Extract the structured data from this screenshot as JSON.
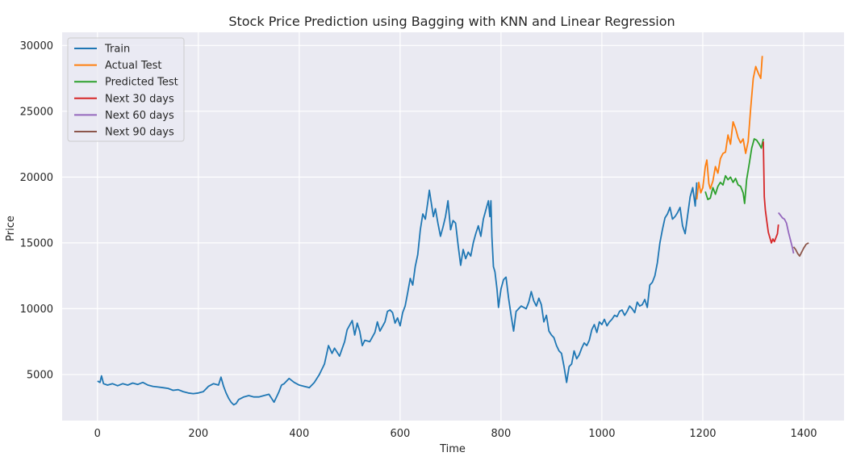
{
  "chart_data": {
    "type": "line",
    "title": "Stock Price Prediction using Bagging with KNN and Linear Regression",
    "xlabel": "Time",
    "ylabel": "Price",
    "xlim": [
      -70,
      1480
    ],
    "ylim": [
      1500,
      31000
    ],
    "xticks": [
      0,
      200,
      400,
      600,
      800,
      1000,
      1200,
      1400
    ],
    "yticks": [
      5000,
      10000,
      15000,
      20000,
      25000,
      30000
    ],
    "grid": true,
    "legend_position": "top-left",
    "series": [
      {
        "name": "Train",
        "color": "#1f77b4",
        "points": [
          [
            0,
            4500
          ],
          [
            5,
            4400
          ],
          [
            8,
            4900
          ],
          [
            12,
            4300
          ],
          [
            20,
            4200
          ],
          [
            30,
            4300
          ],
          [
            40,
            4150
          ],
          [
            50,
            4300
          ],
          [
            60,
            4200
          ],
          [
            70,
            4350
          ],
          [
            80,
            4250
          ],
          [
            90,
            4400
          ],
          [
            100,
            4200
          ],
          [
            110,
            4100
          ],
          [
            120,
            4050
          ],
          [
            130,
            4000
          ],
          [
            140,
            3950
          ],
          [
            150,
            3800
          ],
          [
            160,
            3850
          ],
          [
            170,
            3700
          ],
          [
            180,
            3600
          ],
          [
            190,
            3550
          ],
          [
            200,
            3600
          ],
          [
            210,
            3700
          ],
          [
            220,
            4100
          ],
          [
            230,
            4300
          ],
          [
            240,
            4200
          ],
          [
            245,
            4800
          ],
          [
            250,
            4100
          ],
          [
            255,
            3600
          ],
          [
            260,
            3200
          ],
          [
            265,
            2900
          ],
          [
            270,
            2700
          ],
          [
            275,
            2800
          ],
          [
            280,
            3100
          ],
          [
            290,
            3300
          ],
          [
            300,
            3400
          ],
          [
            310,
            3300
          ],
          [
            320,
            3300
          ],
          [
            330,
            3400
          ],
          [
            340,
            3500
          ],
          [
            350,
            2900
          ],
          [
            355,
            3300
          ],
          [
            360,
            3700
          ],
          [
            365,
            4200
          ],
          [
            370,
            4300
          ],
          [
            380,
            4700
          ],
          [
            390,
            4400
          ],
          [
            400,
            4200
          ],
          [
            410,
            4100
          ],
          [
            420,
            4000
          ],
          [
            430,
            4400
          ],
          [
            440,
            5000
          ],
          [
            450,
            5800
          ],
          [
            458,
            7200
          ],
          [
            465,
            6600
          ],
          [
            470,
            7000
          ],
          [
            480,
            6400
          ],
          [
            490,
            7500
          ],
          [
            495,
            8400
          ],
          [
            505,
            9100
          ],
          [
            510,
            8000
          ],
          [
            515,
            8900
          ],
          [
            520,
            8300
          ],
          [
            525,
            7200
          ],
          [
            530,
            7600
          ],
          [
            540,
            7500
          ],
          [
            550,
            8200
          ],
          [
            555,
            9000
          ],
          [
            560,
            8300
          ],
          [
            570,
            9000
          ],
          [
            575,
            9800
          ],
          [
            580,
            9900
          ],
          [
            585,
            9700
          ],
          [
            590,
            8900
          ],
          [
            595,
            9300
          ],
          [
            600,
            8700
          ],
          [
            605,
            9700
          ],
          [
            610,
            10200
          ],
          [
            615,
            11200
          ],
          [
            620,
            12300
          ],
          [
            625,
            11800
          ],
          [
            630,
            13200
          ],
          [
            635,
            14100
          ],
          [
            640,
            16000
          ],
          [
            645,
            17200
          ],
          [
            650,
            16800
          ],
          [
            655,
            18100
          ],
          [
            658,
            19000
          ],
          [
            662,
            18000
          ],
          [
            666,
            17000
          ],
          [
            670,
            17600
          ],
          [
            675,
            16500
          ],
          [
            680,
            15500
          ],
          [
            685,
            16200
          ],
          [
            690,
            17000
          ],
          [
            695,
            18200
          ],
          [
            700,
            16000
          ],
          [
            705,
            16700
          ],
          [
            710,
            16500
          ],
          [
            715,
            14800
          ],
          [
            720,
            13300
          ],
          [
            725,
            14500
          ],
          [
            730,
            13800
          ],
          [
            735,
            14300
          ],
          [
            740,
            14000
          ],
          [
            745,
            15000
          ],
          [
            750,
            15700
          ],
          [
            755,
            16300
          ],
          [
            760,
            15500
          ],
          [
            765,
            16800
          ],
          [
            770,
            17500
          ],
          [
            775,
            18200
          ],
          [
            778,
            17000
          ],
          [
            780,
            18200
          ],
          [
            782,
            15500
          ],
          [
            785,
            13200
          ],
          [
            788,
            12800
          ],
          [
            792,
            11500
          ],
          [
            795,
            10100
          ],
          [
            800,
            11500
          ],
          [
            805,
            12200
          ],
          [
            810,
            12400
          ],
          [
            815,
            10800
          ],
          [
            820,
            9500
          ],
          [
            825,
            8300
          ],
          [
            830,
            9800
          ],
          [
            840,
            10200
          ],
          [
            850,
            10000
          ],
          [
            855,
            10500
          ],
          [
            860,
            11300
          ],
          [
            865,
            10600
          ],
          [
            870,
            10200
          ],
          [
            875,
            10800
          ],
          [
            880,
            10300
          ],
          [
            885,
            9000
          ],
          [
            890,
            9500
          ],
          [
            895,
            8300
          ],
          [
            900,
            8000
          ],
          [
            905,
            7800
          ],
          [
            910,
            7200
          ],
          [
            915,
            6800
          ],
          [
            920,
            6600
          ],
          [
            925,
            5600
          ],
          [
            930,
            4400
          ],
          [
            935,
            5600
          ],
          [
            940,
            5800
          ],
          [
            945,
            6800
          ],
          [
            950,
            6200
          ],
          [
            955,
            6500
          ],
          [
            960,
            7000
          ],
          [
            965,
            7400
          ],
          [
            970,
            7200
          ],
          [
            975,
            7600
          ],
          [
            980,
            8400
          ],
          [
            985,
            8800
          ],
          [
            990,
            8200
          ],
          [
            995,
            9000
          ],
          [
            1000,
            8800
          ],
          [
            1005,
            9200
          ],
          [
            1010,
            8700
          ],
          [
            1015,
            9000
          ],
          [
            1020,
            9200
          ],
          [
            1025,
            9500
          ],
          [
            1030,
            9400
          ],
          [
            1035,
            9800
          ],
          [
            1040,
            9900
          ],
          [
            1045,
            9500
          ],
          [
            1050,
            9800
          ],
          [
            1055,
            10200
          ],
          [
            1060,
            10000
          ],
          [
            1065,
            9700
          ],
          [
            1070,
            10500
          ],
          [
            1075,
            10200
          ],
          [
            1080,
            10300
          ],
          [
            1085,
            10700
          ],
          [
            1090,
            10100
          ],
          [
            1095,
            11800
          ],
          [
            1100,
            12000
          ],
          [
            1105,
            12500
          ],
          [
            1110,
            13500
          ],
          [
            1115,
            15000
          ],
          [
            1120,
            16000
          ],
          [
            1125,
            16900
          ],
          [
            1130,
            17200
          ],
          [
            1135,
            17700
          ],
          [
            1140,
            16800
          ],
          [
            1145,
            17000
          ],
          [
            1150,
            17300
          ],
          [
            1155,
            17700
          ],
          [
            1160,
            16300
          ],
          [
            1165,
            15700
          ],
          [
            1170,
            17100
          ],
          [
            1175,
            18500
          ],
          [
            1180,
            19200
          ],
          [
            1185,
            17800
          ],
          [
            1188,
            19600
          ]
        ]
      },
      {
        "name": "Actual Test",
        "color": "#ff7f0e",
        "points": [
          [
            1188,
            18300
          ],
          [
            1192,
            19600
          ],
          [
            1196,
            18800
          ],
          [
            1200,
            19200
          ],
          [
            1205,
            20800
          ],
          [
            1208,
            21300
          ],
          [
            1212,
            19500
          ],
          [
            1215,
            19100
          ],
          [
            1220,
            19700
          ],
          [
            1225,
            20800
          ],
          [
            1230,
            20300
          ],
          [
            1235,
            21400
          ],
          [
            1240,
            21800
          ],
          [
            1245,
            21900
          ],
          [
            1250,
            23200
          ],
          [
            1255,
            22500
          ],
          [
            1260,
            24200
          ],
          [
            1265,
            23700
          ],
          [
            1270,
            23000
          ],
          [
            1275,
            22600
          ],
          [
            1280,
            22900
          ],
          [
            1285,
            21800
          ],
          [
            1290,
            22700
          ],
          [
            1295,
            25200
          ],
          [
            1300,
            27500
          ],
          [
            1305,
            28400
          ],
          [
            1310,
            27900
          ],
          [
            1315,
            27500
          ],
          [
            1318,
            29200
          ]
        ]
      },
      {
        "name": "Predicted Test",
        "color": "#2ca02c",
        "points": [
          [
            1205,
            18900
          ],
          [
            1210,
            18300
          ],
          [
            1215,
            18400
          ],
          [
            1220,
            19200
          ],
          [
            1225,
            18700
          ],
          [
            1230,
            19300
          ],
          [
            1235,
            19600
          ],
          [
            1240,
            19400
          ],
          [
            1245,
            20100
          ],
          [
            1250,
            19800
          ],
          [
            1255,
            20000
          ],
          [
            1260,
            19600
          ],
          [
            1265,
            19900
          ],
          [
            1270,
            19400
          ],
          [
            1275,
            19300
          ],
          [
            1280,
            18800
          ],
          [
            1283,
            18000
          ],
          [
            1287,
            19800
          ],
          [
            1292,
            21000
          ],
          [
            1297,
            22200
          ],
          [
            1302,
            22900
          ],
          [
            1307,
            22800
          ],
          [
            1312,
            22500
          ],
          [
            1316,
            22200
          ],
          [
            1320,
            22900
          ]
        ]
      },
      {
        "name": "Next 30 days",
        "color": "#d62728",
        "points": [
          [
            1320,
            22700
          ],
          [
            1322,
            18500
          ],
          [
            1324,
            17500
          ],
          [
            1327,
            16600
          ],
          [
            1330,
            15800
          ],
          [
            1333,
            15400
          ],
          [
            1336,
            15000
          ],
          [
            1339,
            15300
          ],
          [
            1342,
            15100
          ],
          [
            1345,
            15400
          ],
          [
            1348,
            15700
          ],
          [
            1350,
            16400
          ]
        ]
      },
      {
        "name": "Next 60 days",
        "color": "#9467bd",
        "points": [
          [
            1350,
            17300
          ],
          [
            1354,
            17100
          ],
          [
            1358,
            16900
          ],
          [
            1362,
            16800
          ],
          [
            1366,
            16500
          ],
          [
            1370,
            15800
          ],
          [
            1374,
            15200
          ],
          [
            1378,
            14600
          ],
          [
            1380,
            14200
          ]
        ]
      },
      {
        "name": "Next 90 days",
        "color": "#8c564b",
        "points": [
          [
            1380,
            14700
          ],
          [
            1384,
            14500
          ],
          [
            1388,
            14200
          ],
          [
            1392,
            14000
          ],
          [
            1396,
            14300
          ],
          [
            1400,
            14600
          ],
          [
            1405,
            14900
          ],
          [
            1410,
            15000
          ]
        ]
      }
    ]
  }
}
